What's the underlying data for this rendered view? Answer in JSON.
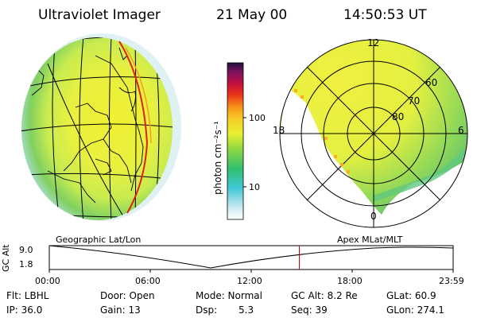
{
  "header": {
    "instrument": "Ultraviolet Imager",
    "date": "21 May 00",
    "time": "14:50:53 UT"
  },
  "colorbar": {
    "unit_label": "photon cm⁻²s⁻¹",
    "ticks": [
      "100",
      "10"
    ],
    "scale": "log"
  },
  "polar_plot": {
    "mlt_labels": [
      "12",
      "18",
      "6",
      "0"
    ],
    "lat_labels": [
      "60",
      "70",
      "80"
    ]
  },
  "maps": {
    "left_caption": "Geographic Lat/Lon",
    "right_caption": "Apex MLat/MLT"
  },
  "orbit_panel": {
    "ylabel": "GC Alt",
    "y_ticks": [
      "9.0",
      "1.8"
    ],
    "x_ticks": [
      "00:00",
      "06:00",
      "12:00",
      "18:00",
      "23:59"
    ],
    "current_time_fraction": 0.619,
    "marker_color": "#c00000"
  },
  "status": {
    "flt": "Flt: LBHL",
    "ip": "IP: 36.0",
    "door": "Door: Open",
    "gain": "Gain: 13",
    "mode": "Mode: Normal",
    "dsp_label": "Dsp:",
    "dsp_value": "5.3",
    "gc_alt": "GC Alt: 8.2 Re",
    "seq": "Seq: 39",
    "glat": "GLat:  60.9",
    "glon": "GLon: 274.1"
  }
}
